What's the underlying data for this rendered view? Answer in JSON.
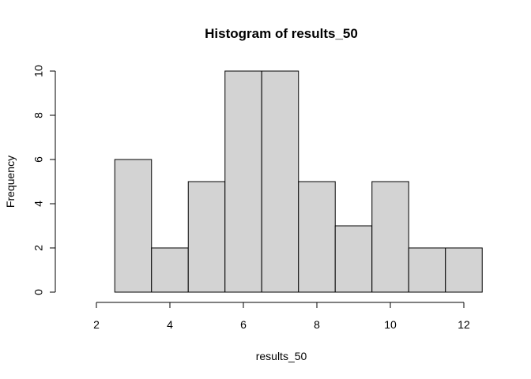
{
  "chart_data": {
    "type": "histogram",
    "title": "Histogram of results_50",
    "x_label": "results_50",
    "y_label": "Frequency",
    "bins": [
      1.5,
      2.5,
      3.5,
      4.5,
      5.5,
      6.5,
      7.5,
      8.5,
      9.5,
      10.5,
      11.5,
      12.5
    ],
    "values": [
      0,
      6,
      2,
      5,
      10,
      10,
      5,
      3,
      5,
      2,
      2
    ],
    "color": "#d3d3d3",
    "xlim": [
      1.5,
      12.5
    ],
    "xticks": [
      2,
      4,
      6,
      8,
      10,
      12
    ],
    "ylim": [
      0,
      10
    ],
    "yticks": [
      0,
      2,
      4,
      6,
      8,
      10
    ]
  }
}
